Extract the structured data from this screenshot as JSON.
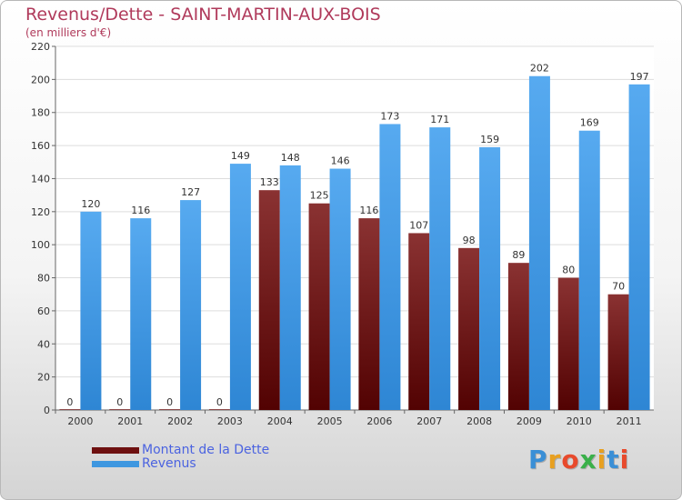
{
  "title": "Revenus/Dette - SAINT-MARTIN-AUX-BOIS",
  "subtitle": "(en milliers d'€)",
  "logo": {
    "text": "Proxiti",
    "colors": [
      "#3a8fd6",
      "#e8a020",
      "#e84a2c",
      "#3ab04a",
      "#e8a020",
      "#3a8fd6",
      "#e84a2c"
    ]
  },
  "colors": {
    "dette": "#6e1010",
    "revenus": "#3e97e0",
    "text": "#b03a5b",
    "legend_text": "#4b63e0"
  },
  "chart_data": {
    "type": "bar",
    "title": "Revenus/Dette - SAINT-MARTIN-AUX-BOIS",
    "subtitle": "(en milliers d'€)",
    "categories": [
      "2000",
      "2001",
      "2002",
      "2003",
      "2004",
      "2005",
      "2006",
      "2007",
      "2008",
      "2009",
      "2010",
      "2011"
    ],
    "series": [
      {
        "name": "Montant de la Dette",
        "values": [
          0,
          0,
          0,
          0,
          133,
          125,
          116,
          107,
          98,
          89,
          80,
          70
        ]
      },
      {
        "name": "Revenus",
        "values": [
          120,
          116,
          127,
          149,
          148,
          146,
          173,
          171,
          159,
          202,
          169,
          197
        ]
      }
    ],
    "ylim": [
      0,
      220
    ],
    "yticks": [
      0,
      20,
      40,
      60,
      80,
      100,
      120,
      140,
      160,
      180,
      200,
      220
    ],
    "grid": true,
    "legend": "bottom-left"
  }
}
